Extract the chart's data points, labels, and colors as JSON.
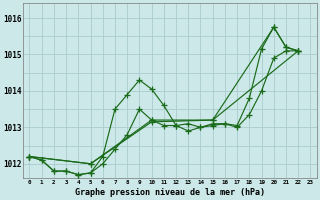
{
  "title": "Graphe pression niveau de la mer (hPa)",
  "bg_color": "#cce8e8",
  "grid_color": "#aacccc",
  "line_color": "#1a6b1a",
  "xlim": [
    -0.5,
    23.5
  ],
  "ylim": [
    1011.6,
    1016.4
  ],
  "yticks": [
    1012,
    1013,
    1014,
    1015,
    1016
  ],
  "xtick_labels": [
    "0",
    "1",
    "2",
    "3",
    "4",
    "5",
    "6",
    "7",
    "8",
    "9",
    "10",
    "11",
    "12",
    "13",
    "14",
    "15",
    "16",
    "17",
    "18",
    "19",
    "20",
    "21",
    "22",
    "23"
  ],
  "series": [
    {
      "x": [
        0,
        1,
        2,
        3,
        4,
        5,
        6,
        7,
        8,
        9,
        10,
        11,
        12,
        13,
        14,
        15,
        16,
        17,
        18,
        19,
        20,
        21,
        22
      ],
      "y": [
        1012.2,
        1012.1,
        1011.8,
        1011.8,
        1011.7,
        1011.75,
        1012.2,
        1013.5,
        1013.9,
        1014.3,
        1014.05,
        1013.6,
        1013.05,
        1013.1,
        1013.0,
        1013.1,
        1013.1,
        1013.05,
        1013.8,
        1015.15,
        1015.75,
        1015.2,
        1015.1
      ]
    },
    {
      "x": [
        0,
        1,
        2,
        3,
        4,
        5,
        6,
        7,
        8,
        9,
        10,
        11,
        12,
        13,
        14,
        15,
        16,
        17,
        18,
        19,
        20,
        21,
        22
      ],
      "y": [
        1012.2,
        1012.1,
        1011.8,
        1011.8,
        1011.7,
        1011.75,
        1012.0,
        1012.4,
        1012.8,
        1013.5,
        1013.2,
        1013.05,
        1013.05,
        1012.9,
        1013.0,
        1013.05,
        1013.1,
        1013.0,
        1013.35,
        1014.0,
        1014.9,
        1015.1,
        1015.1
      ]
    },
    {
      "x": [
        0,
        5,
        10,
        15,
        22
      ],
      "y": [
        1012.2,
        1012.0,
        1013.15,
        1013.2,
        1015.1
      ]
    },
    {
      "x": [
        0,
        5,
        10,
        15,
        20,
        21,
        22
      ],
      "y": [
        1012.2,
        1012.0,
        1013.2,
        1013.2,
        1015.75,
        1015.2,
        1015.1
      ]
    }
  ]
}
